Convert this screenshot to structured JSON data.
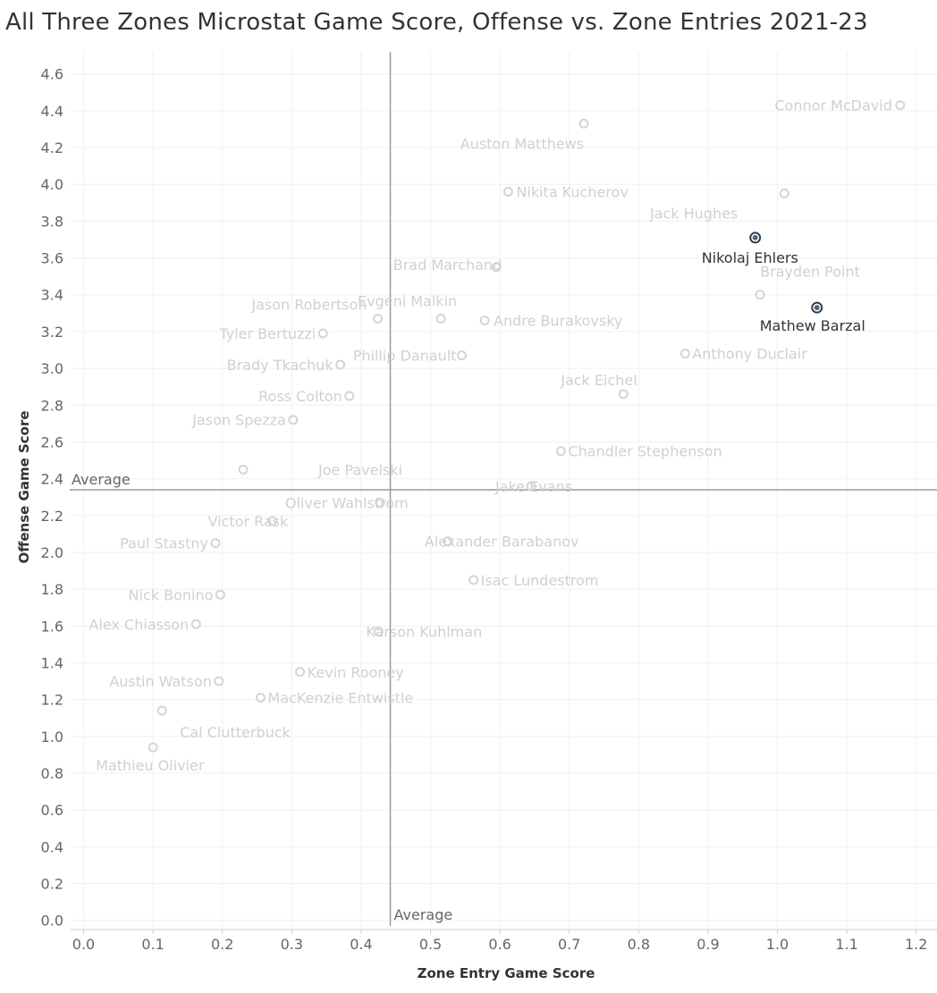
{
  "chart_data": {
    "type": "scatter",
    "title": "All Three Zones Microstat Game Score, Offense vs. Zone Entries 2021-23",
    "xlabel": "Zone Entry Game Score",
    "ylabel": "Offense Game Score",
    "xlim": [
      -0.02,
      1.23
    ],
    "ylim": [
      -0.05,
      4.72
    ],
    "x_ticks": [
      "0.0",
      "0.1",
      "0.2",
      "0.3",
      "0.4",
      "0.5",
      "0.6",
      "0.7",
      "0.8",
      "0.9",
      "1.0",
      "1.1",
      "1.2"
    ],
    "x_tick_values": [
      0,
      0.1,
      0.2,
      0.3,
      0.4,
      0.5,
      0.6,
      0.7,
      0.8,
      0.9,
      1.0,
      1.1,
      1.2
    ],
    "y_ticks": [
      "0.0",
      "0.2",
      "0.4",
      "0.6",
      "0.8",
      "1.0",
      "1.2",
      "1.4",
      "1.6",
      "1.8",
      "2.0",
      "2.2",
      "2.4",
      "2.6",
      "2.8",
      "3.0",
      "3.2",
      "3.4",
      "3.6",
      "3.8",
      "4.0",
      "4.2",
      "4.4",
      "4.6"
    ],
    "y_tick_values": [
      0,
      0.2,
      0.4,
      0.6,
      0.8,
      1.0,
      1.2,
      1.4,
      1.6,
      1.8,
      2.0,
      2.2,
      2.4,
      2.6,
      2.8,
      3.0,
      3.2,
      3.4,
      3.6,
      3.8,
      4.0,
      4.2,
      4.4,
      4.6
    ],
    "reference_lines": {
      "x_average": 0.442,
      "y_average": 2.34,
      "x_label": "Average",
      "y_label": "Average"
    },
    "colors": {
      "point": "#cfd6de",
      "point_label": "#d0d0d0",
      "highlight": "#2e3e50",
      "highlight_label": "#333333",
      "reference": "#999999",
      "grid": "#f0f0f0",
      "tick": "#666666"
    },
    "highlighted": [
      {
        "name": "Nikolaj Ehlers",
        "x": 0.968,
        "y": 3.71
      },
      {
        "name": "Mathew Barzal",
        "x": 1.057,
        "y": 3.33
      }
    ],
    "labeled_points": [
      {
        "name": "Connor McDavid",
        "x": 1.177,
        "y": 4.43
      },
      {
        "name": "Auston Matthews",
        "x": 0.721,
        "y": 4.33
      },
      {
        "name": "Nikita Kucherov",
        "x": 0.612,
        "y": 3.96
      },
      {
        "name": "Jack Hughes",
        "x": 1.01,
        "y": 3.95
      },
      {
        "name": "Brad Marchand",
        "x": 0.595,
        "y": 3.55
      },
      {
        "name": "Brayden Point",
        "x": 0.975,
        "y": 3.4
      },
      {
        "name": "Jason Robertson",
        "x": 0.424,
        "y": 3.27
      },
      {
        "name": "Evgeni Malkin",
        "x": 0.515,
        "y": 3.27
      },
      {
        "name": "Andre Burakovsky",
        "x": 0.578,
        "y": 3.26
      },
      {
        "name": "Tyler Bertuzzi",
        "x": 0.345,
        "y": 3.19
      },
      {
        "name": "Anthony Duclair",
        "x": 0.867,
        "y": 3.08
      },
      {
        "name": "Phillip Danault",
        "x": 0.545,
        "y": 3.07
      },
      {
        "name": "Brady Tkachuk",
        "x": 0.37,
        "y": 3.02
      },
      {
        "name": "Jack Eichel",
        "x": 0.778,
        "y": 2.86
      },
      {
        "name": "Ross Colton",
        "x": 0.383,
        "y": 2.85
      },
      {
        "name": "Jason Spezza",
        "x": 0.302,
        "y": 2.72
      },
      {
        "name": "Chandler Stephenson",
        "x": 0.688,
        "y": 2.55
      },
      {
        "name": "Joe Pavelski",
        "x": 0.23,
        "y": 2.45
      },
      {
        "name": "Jake Evans",
        "x": 0.645,
        "y": 2.36
      },
      {
        "name": "Oliver Wahlstrom",
        "x": 0.427,
        "y": 2.27
      },
      {
        "name": "Victor Rask",
        "x": 0.272,
        "y": 2.17
      },
      {
        "name": "Paul Stastny",
        "x": 0.19,
        "y": 2.05
      },
      {
        "name": "Alexander Barabanov",
        "x": 0.525,
        "y": 2.06
      },
      {
        "name": "Isac Lundestrom",
        "x": 0.562,
        "y": 1.85
      },
      {
        "name": "Nick Bonino",
        "x": 0.197,
        "y": 1.77
      },
      {
        "name": "Alex Chiasson",
        "x": 0.162,
        "y": 1.61
      },
      {
        "name": "Karson Kuhlman",
        "x": 0.425,
        "y": 1.57
      },
      {
        "name": "Kevin Rooney",
        "x": 0.312,
        "y": 1.35
      },
      {
        "name": "Austin Watson",
        "x": 0.195,
        "y": 1.3
      },
      {
        "name": "MacKenzie Entwistle",
        "x": 0.255,
        "y": 1.21
      },
      {
        "name": "Cal Clutterbuck",
        "x": 0.113,
        "y": 1.14
      },
      {
        "name": "Mathieu Olivier",
        "x": 0.1,
        "y": 0.94
      }
    ]
  }
}
